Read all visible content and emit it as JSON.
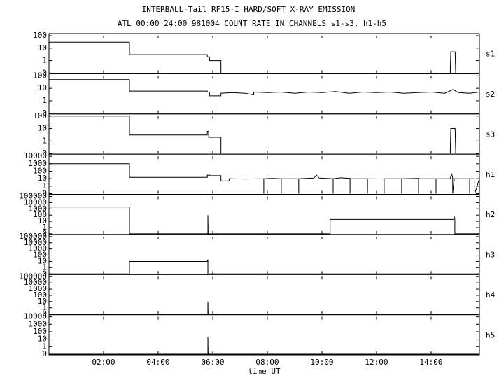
{
  "title": "INTERBALL-Tail RF15-I HARD/SOFT X-RAY EMISSION",
  "subtitle": "ATL 00:00 24:00 981004  COUNT RATE IN CHANNELS s1-s3, h1-h5",
  "chart_data": [
    {
      "type": "line",
      "yscale": "log",
      "xlim": [
        0,
        15.77
      ],
      "ylim": [
        0,
        100
      ],
      "yticks": [
        0,
        1,
        10,
        100
      ],
      "series": [
        {
          "name": "s1",
          "color": "#000000",
          "x": [
            0,
            2.95,
            2.95,
            5.8,
            5.8,
            5.88,
            5.88,
            6.3,
            6.3,
            10,
            14.7,
            14.72,
            14.88,
            14.9
          ],
          "values": [
            30,
            30,
            3,
            3,
            2,
            2,
            1,
            1,
            0,
            null,
            0,
            5,
            5,
            0
          ]
        }
      ]
    },
    {
      "type": "line",
      "yscale": "log",
      "xlim": [
        0,
        15.77
      ],
      "ylim": [
        0,
        100
      ],
      "yticks": [
        0,
        1,
        10,
        100
      ],
      "series": [
        {
          "name": "s2",
          "color": "#000000",
          "x": [
            0,
            2.95,
            2.95,
            5.8,
            5.8,
            5.88,
            5.88,
            6.3,
            6.3,
            6.7,
            7.2,
            7.5,
            7.5,
            8.0,
            8.5,
            9.0,
            9.5,
            10.0,
            10.5,
            11.0,
            11.5,
            12.0,
            12.5,
            13.0,
            13.5,
            14.0,
            14.5,
            14.8,
            15.0,
            15.4,
            15.77
          ],
          "values": [
            50,
            50,
            6,
            6,
            5,
            5,
            2.5,
            2.5,
            4,
            4.5,
            4,
            3,
            5,
            4.5,
            5,
            4,
            5,
            4.5,
            5.5,
            4,
            5,
            4.5,
            5,
            4,
            4.5,
            5,
            4,
            8,
            4.5,
            4,
            5
          ]
        }
      ]
    },
    {
      "type": "line",
      "yscale": "log",
      "xlim": [
        0,
        15.77
      ],
      "ylim": [
        0,
        100
      ],
      "yticks": [
        0,
        1,
        10,
        100
      ],
      "series": [
        {
          "name": "s3",
          "color": "#000000",
          "x": [
            0,
            2.95,
            2.95,
            5.8,
            5.8,
            5.85,
            5.85,
            6.3,
            6.3,
            10,
            14.7,
            14.72,
            14.88,
            14.9
          ],
          "values": [
            100,
            100,
            3,
            3,
            6,
            6,
            2,
            2,
            0,
            null,
            0,
            10,
            10,
            0
          ]
        }
      ]
    },
    {
      "type": "line",
      "yscale": "log",
      "xlim": [
        0,
        15.77
      ],
      "ylim": [
        0,
        10000
      ],
      "yticks": [
        0,
        1,
        10,
        100,
        1000,
        10000
      ],
      "series": [
        {
          "name": "h1",
          "color": "#000000",
          "x": [
            0,
            2.95,
            2.95,
            5.8,
            5.8,
            5.88,
            5.88,
            6.3,
            6.3,
            6.6,
            6.6,
            7.2,
            7.87,
            7.87,
            7.87,
            8.2,
            8.51,
            8.51,
            8.51,
            9.15,
            9.15,
            9.15,
            9.7,
            9.8,
            9.9,
            10.41,
            10.41,
            10.41,
            10.7,
            11.03,
            11.03,
            11.03,
            11.67,
            11.67,
            11.67,
            12.28,
            12.28,
            12.28,
            12.92,
            12.92,
            12.92,
            13.54,
            13.54,
            13.54,
            14.18,
            14.18,
            14.18,
            14.7,
            14.75,
            14.79,
            14.79,
            14.85,
            15.41,
            15.41,
            15.41,
            15.6,
            15.6,
            15.77
          ],
          "values": [
            1000,
            1000,
            15,
            15,
            30,
            30,
            25,
            25,
            5,
            5,
            10,
            9,
            10,
            0,
            10,
            11,
            10,
            0,
            10,
            10,
            0,
            10,
            12,
            30,
            12,
            10,
            0,
            10,
            13,
            11,
            0,
            10,
            10,
            0,
            10,
            9,
            0,
            10,
            10,
            0,
            10,
            11,
            0,
            10,
            10,
            0,
            10,
            10,
            50,
            12,
            0,
            10,
            10,
            0,
            10,
            10,
            0,
            10
          ]
        }
      ]
    },
    {
      "type": "line",
      "yscale": "log",
      "xlim": [
        0,
        15.77
      ],
      "ylim": [
        0,
        100000
      ],
      "yticks": [
        0,
        1,
        10,
        100,
        1000,
        10000,
        100000
      ],
      "series": [
        {
          "name": "h2",
          "color": "#000000",
          "x": [
            0,
            2.95,
            2.95,
            5.82,
            5.82,
            5.83,
            10.3,
            10.3,
            14.83,
            14.85,
            14.87,
            14.87,
            15.77
          ],
          "values": [
            2000,
            2000,
            0,
            0,
            100,
            0,
            0,
            20,
            20,
            60,
            20,
            0,
            0
          ]
        }
      ]
    },
    {
      "type": "line",
      "yscale": "log",
      "xlim": [
        0,
        15.77
      ],
      "ylim": [
        0,
        100000
      ],
      "yticks": [
        0,
        1,
        10,
        100,
        1000,
        10000,
        100000
      ],
      "series": [
        {
          "name": "h3",
          "color": "#000000",
          "x": [
            0,
            2.95,
            2.95,
            5.8,
            5.82,
            5.82,
            5.83,
            15.77
          ],
          "values": [
            0,
            0,
            10,
            10,
            20,
            0,
            0,
            0
          ]
        }
      ]
    },
    {
      "type": "line",
      "yscale": "log",
      "xlim": [
        0,
        15.77
      ],
      "ylim": [
        0,
        100000
      ],
      "yticks": [
        0,
        1,
        10,
        100,
        1000,
        10000,
        100000
      ],
      "series": [
        {
          "name": "h4",
          "color": "#000000",
          "x": [
            0,
            5.82,
            5.82,
            5.83,
            15.77
          ],
          "values": [
            0,
            0,
            10,
            0,
            0
          ]
        }
      ]
    },
    {
      "type": "line",
      "yscale": "log",
      "xlim": [
        0,
        15.77
      ],
      "ylim": [
        0,
        10000
      ],
      "yticks": [
        0,
        1,
        10,
        100,
        1000,
        10000
      ],
      "xlabel": "time UT",
      "xticks": [
        {
          "value": 2,
          "label": "02:00"
        },
        {
          "value": 4,
          "label": "04:00"
        },
        {
          "value": 6,
          "label": "06:00"
        },
        {
          "value": 8,
          "label": "08:00"
        },
        {
          "value": 10,
          "label": "10:00"
        },
        {
          "value": 12,
          "label": "12:00"
        },
        {
          "value": 14,
          "label": "14:00"
        }
      ],
      "series": [
        {
          "name": "h5",
          "color": "#000000",
          "x": [
            0,
            5.82,
            5.82,
            5.83,
            15.77
          ],
          "values": [
            0,
            0,
            20,
            0,
            0
          ]
        }
      ]
    }
  ]
}
